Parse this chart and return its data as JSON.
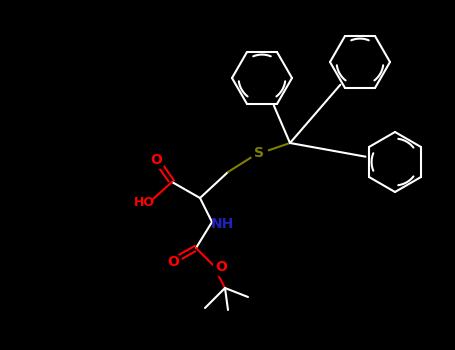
{
  "bg": "#000000",
  "W": "#ffffff",
  "O": "#ff0000",
  "N": "#2222bb",
  "S": "#808000",
  "fig_w": 4.55,
  "fig_h": 3.5,
  "dpi": 100,
  "lw": 1.5
}
